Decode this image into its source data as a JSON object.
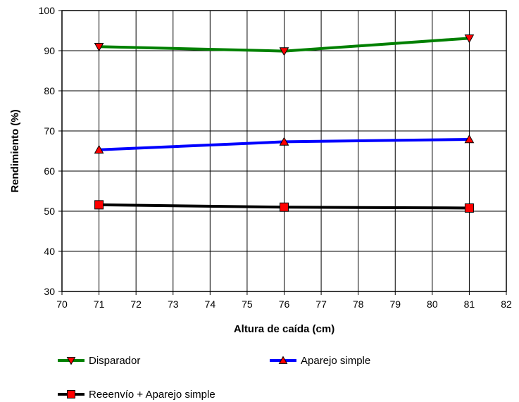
{
  "chart_data": {
    "type": "line",
    "title": "",
    "xlabel": "Altura de caída (cm)",
    "ylabel": "Rendimiento (%)",
    "xlim": [
      70,
      82
    ],
    "ylim": [
      30,
      100
    ],
    "xticks": [
      "70",
      "71",
      "72",
      "73",
      "74",
      "75",
      "76",
      "77",
      "78",
      "79",
      "80",
      "81",
      "82"
    ],
    "yticks": [
      "30",
      "40",
      "50",
      "60",
      "70",
      "80",
      "90",
      "100"
    ],
    "grid": true,
    "legend_position": "bottom",
    "x": [
      71,
      76,
      81
    ],
    "series": [
      {
        "name": "Disparador",
        "values": [
          91.0,
          89.9,
          93.1
        ],
        "line_color": "#008000",
        "marker": "triangle-down",
        "marker_color": "#ff0000"
      },
      {
        "name": "Aparejo simple",
        "values": [
          65.3,
          67.3,
          67.9
        ],
        "line_color": "#0000ff",
        "marker": "triangle-up",
        "marker_color": "#ff0000"
      },
      {
        "name": "Reeenvío + Aparejo simple",
        "values": [
          51.6,
          51.0,
          50.8
        ],
        "line_color": "#000000",
        "marker": "square",
        "marker_color": "#ff0000"
      }
    ]
  }
}
